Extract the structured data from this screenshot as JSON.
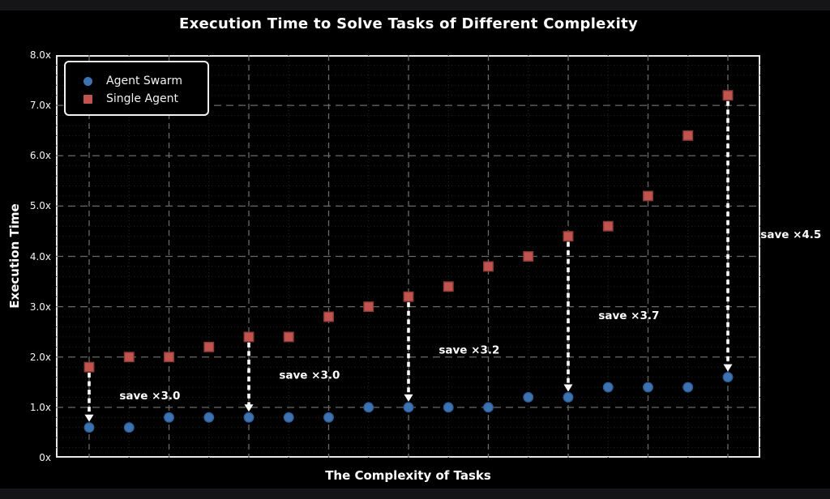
{
  "title": "Execution Time to Solve Tasks of Different Complexity",
  "xlabel": "The Complexity of Tasks",
  "ylabel": "Execution Time",
  "legend": {
    "position": "upper-left",
    "items": [
      {
        "label": "Agent Swarm",
        "marker": "circle",
        "color": "#3e73b1"
      },
      {
        "label": "Single Agent",
        "marker": "square",
        "color": "#c1544e"
      }
    ]
  },
  "axes": {
    "yticks": [
      {
        "value": 0,
        "label": "0x"
      },
      {
        "value": 1,
        "label": "1.0x"
      },
      {
        "value": 2,
        "label": "2.0x"
      },
      {
        "value": 3,
        "label": "3.0x"
      },
      {
        "value": 4,
        "label": "4.0x"
      },
      {
        "value": 5,
        "label": "5.0x"
      },
      {
        "value": 6,
        "label": "6.0x"
      },
      {
        "value": 7,
        "label": "7.0x"
      },
      {
        "value": 8,
        "label": "8.0x"
      }
    ],
    "ylim": [
      0,
      8
    ],
    "x_tick_labels": "none",
    "grid": {
      "major": "dashed",
      "minor": "dotted"
    }
  },
  "chart_data": {
    "type": "scatter",
    "x": [
      1,
      2,
      3,
      4,
      5,
      6,
      7,
      8,
      9,
      10,
      11,
      12,
      13,
      14,
      15,
      16,
      17
    ],
    "series": [
      {
        "name": "Agent Swarm",
        "marker": "circle",
        "color": "#3e73b1",
        "edge_color": "#2c5d97",
        "values": [
          0.6,
          0.6,
          0.8,
          0.8,
          0.8,
          0.8,
          0.8,
          1.0,
          1.0,
          1.0,
          1.0,
          1.2,
          1.2,
          1.4,
          1.4,
          1.4,
          1.6
        ]
      },
      {
        "name": "Single Agent",
        "marker": "square",
        "color": "#c1544e",
        "edge_color": "#8e3c38",
        "values": [
          1.8,
          2.0,
          2.0,
          2.2,
          2.4,
          2.4,
          2.8,
          3.0,
          3.2,
          3.4,
          3.8,
          4.0,
          4.4,
          4.6,
          5.2,
          6.4,
          7.2
        ]
      }
    ],
    "arrows": [
      {
        "x_index": 1
      },
      {
        "x_index": 5
      },
      {
        "x_index": 9
      },
      {
        "x_index": 13
      },
      {
        "x_index": 17
      }
    ],
    "annotations": [
      {
        "text": "save ×3.0",
        "x": 2.52,
        "y": 1.22
      },
      {
        "text": "save ×3.0",
        "x": 6.52,
        "y": 1.63
      },
      {
        "text": "save ×3.2",
        "x": 10.52,
        "y": 2.13
      },
      {
        "text": "save ×3.7",
        "x": 14.52,
        "y": 2.82
      },
      {
        "text": "save ×4.5",
        "x": 18.58,
        "y": 4.43
      }
    ],
    "colors": {
      "arrow": "#ffffff",
      "grid_major": "#6a6a6a",
      "grid_minor": "#262626",
      "spine": "#e8e8e8",
      "background": "#000000",
      "annotation_text": "#ffffff"
    },
    "ylim": [
      0,
      8
    ]
  }
}
